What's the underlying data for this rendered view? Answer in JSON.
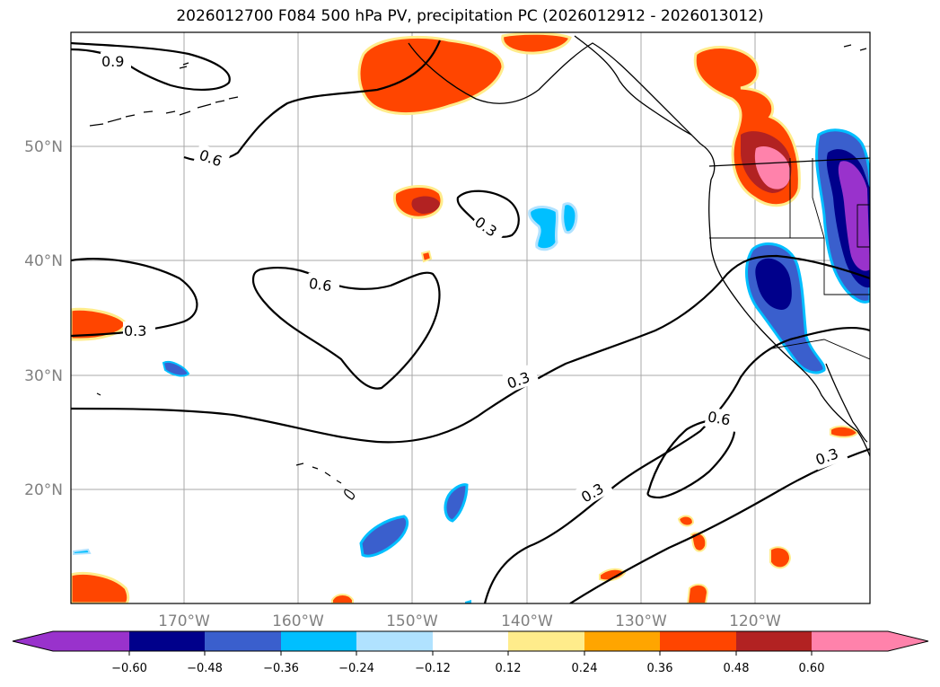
{
  "title": "2026012700 F084 500 hPa PV, precipitation PC (2026012912 - 2026013012)",
  "map": {
    "lat_labels": [
      "50°N",
      "40°N",
      "30°N",
      "20°N"
    ],
    "lon_labels": [
      "170°W",
      "160°W",
      "150°W",
      "140°W",
      "130°W",
      "120°W"
    ],
    "gridlines": true,
    "projection": "PlateCarree"
  },
  "contour_labels": [
    "0.9",
    "0.6",
    "0.3",
    "0.6",
    "0.3",
    "0.3",
    "0.6",
    "0.3",
    "0.3"
  ],
  "colorbar": {
    "ticks": [
      "−0.60",
      "−0.48",
      "−0.36",
      "−0.24",
      "−0.12",
      "0.12",
      "0.24",
      "0.36",
      "0.48",
      "0.60"
    ],
    "colors": [
      "#9932CC",
      "#00008B",
      "#3A5FCD",
      "#00BFFF",
      "#B0E2FF",
      "#FFFFFF",
      "#FFEC8B",
      "#FFA500",
      "#FF4500",
      "#B22222",
      "#FF82AB"
    ],
    "extend": "both"
  }
}
